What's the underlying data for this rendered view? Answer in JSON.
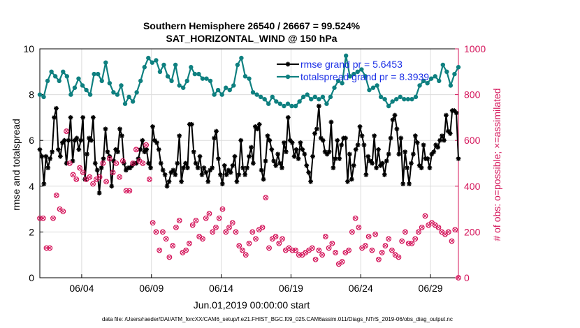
{
  "chart_data": {
    "type": "line",
    "title": "Southern Hemisphere 26540 / 26667 = 99.524%",
    "subtitle": "SAT_HORIZONTAL_WIND @ 150 hPa",
    "xlabel": "Jun.01,2019 00:00:00 start",
    "ylabel_left": "rmse and totalspread",
    "ylabel_right": "# of obs: o=possible; ×=assimilated",
    "footer": "data file: /Users/raeder/DAI/ATM_forcXX/CAM6_setup/f.e21.FHIST_BGC.f09_025.CAM6assim.011/Diags_NTrS_2019-06/obs_diag_output.nc",
    "x_tick_labels": [
      "06/04",
      "06/09",
      "06/14",
      "06/19",
      "06/24",
      "06/29"
    ],
    "x_tick_positions_day": [
      4,
      9,
      14,
      19,
      24,
      29
    ],
    "xlim_day": [
      1,
      31
    ],
    "ylim_left": [
      0,
      10
    ],
    "yticks_left": [
      "0",
      "2",
      "4",
      "6",
      "8",
      "10"
    ],
    "ylim_right": [
      0,
      1000
    ],
    "yticks_right": [
      "0",
      "200",
      "400",
      "600",
      "800",
      "1000"
    ],
    "grid": true,
    "legend_position": "top-right",
    "colors": {
      "rmse": "#000000",
      "spread": "#0f8080",
      "obs": "#d4145a",
      "legend_text": "#1a2ee6"
    },
    "series": [
      {
        "name": "rmse grand pr = 5.6453",
        "axis": "left",
        "marker": "asterisk",
        "values": [
          5.6,
          5.3,
          4.1,
          5.3,
          4.8,
          5.2,
          5.5,
          7.0,
          7.4,
          5.6,
          5.3,
          5.9,
          6.0,
          5.0,
          6.0,
          7.0,
          5.1,
          6.0,
          6.1,
          5.6,
          6.0,
          7.0,
          4.3,
          5.4,
          6.1,
          6.0,
          7.0,
          5.0,
          4.7,
          3.7,
          4.8,
          5.2,
          6.5,
          5.5,
          5.3,
          4.0,
          5.1,
          5.6,
          5.5,
          6.5,
          6.2,
          5.0,
          4.7,
          4.8,
          4.8,
          4.9,
          5.0,
          5.0,
          5.2,
          5.6,
          6.0,
          5.5,
          5.6,
          5.0,
          4.8,
          6.6,
          6.0,
          5.9,
          5.6,
          5.0,
          4.7,
          4.5,
          4.0,
          4.2,
          4.6,
          4.7,
          4.5,
          5.0,
          6.2,
          4.2,
          4.8,
          5.0,
          4.8,
          6.7,
          6.7,
          5.5,
          5.0,
          4.8,
          5.3,
          4.5,
          4.8,
          4.6,
          4.2,
          4.7,
          4.8,
          6.1,
          6.4,
          5.2,
          4.5,
          4.1,
          4.9,
          4.5,
          4.7,
          4.6,
          4.9,
          5.3,
          4.2,
          4.5,
          6.0,
          4.8,
          4.5,
          4.8,
          5.3,
          5.7,
          5.0,
          6.6,
          6.5,
          6.7,
          4.7,
          4.3,
          5.1,
          6.2,
          6.0,
          5.6,
          5.1,
          4.9,
          5.4,
          5.0,
          4.8,
          5.9,
          5.5,
          7.0,
          6.0,
          5.9,
          5.3,
          5.6,
          5.2,
          5.9,
          5.6,
          5.4,
          4.9,
          4.6,
          4.2,
          5.3,
          6.3,
          6.5,
          7.5,
          6.1,
          6.0,
          5.5,
          5.4,
          5.5,
          6.8,
          4.8,
          5.2,
          6.0,
          5.2,
          5.8,
          6.1,
          6.1,
          4.2,
          5.4,
          4.3,
          4.9,
          5.6,
          5.8,
          6.6,
          6.2,
          5.8,
          4.5,
          5.3,
          5.1,
          5.0,
          6.2,
          4.8,
          5.6,
          4.9,
          5.0,
          4.5,
          5.1,
          5.4,
          6.1,
          6.9,
          7.1,
          6.5,
          5.4,
          6.1,
          4.1,
          5.5,
          4.8,
          4.1,
          5.0,
          5.4,
          6.2,
          5.9,
          4.9,
          4.8,
          5.8,
          5.2,
          5.2,
          4.8,
          5.4,
          5.5,
          5.8,
          5.7,
          6.0,
          6.2,
          6.0,
          7.1,
          6.4,
          6.3,
          7.3,
          7.3,
          7.2,
          5.2
        ]
      },
      {
        "name": "totalspread grand pr = 8.3939",
        "axis": "left",
        "marker": "dot",
        "values": [
          8.0,
          7.9,
          8.6,
          9.0,
          8.8,
          8.6,
          9.0,
          8.8,
          8.0,
          8.3,
          8.7,
          8.4,
          8.2,
          8.0,
          8.9,
          8.9,
          8.6,
          9.4,
          8.5,
          8.1,
          8.0,
          8.4,
          7.6,
          7.9,
          7.7,
          8.1,
          8.6,
          9.2,
          9.6,
          9.4,
          9.5,
          9.0,
          9.3,
          8.8,
          8.6,
          9.3,
          8.4,
          8.3,
          8.6,
          9.2,
          8.9,
          8.9,
          8.7,
          8.7,
          8.6,
          8.0,
          8.2,
          8.0,
          8.3,
          8.2,
          8.4,
          9.3,
          9.6,
          8.8,
          8.7,
          8.1,
          8.0,
          7.9,
          7.8,
          7.6,
          7.9,
          7.7,
          7.6,
          7.5,
          7.6,
          7.5,
          7.5,
          7.7,
          7.9,
          8.0,
          7.8,
          7.9,
          7.8,
          7.9,
          7.6,
          7.9,
          8.3,
          8.6,
          8.5,
          9.7,
          8.8,
          8.9,
          9.0,
          9.1,
          8.8,
          8.2,
          8.3,
          8.4,
          7.9,
          7.8,
          7.5,
          7.7,
          7.8,
          7.9,
          7.8,
          7.8,
          7.8,
          7.9,
          8.4,
          8.6,
          8.5,
          8.7,
          8.8,
          8.6,
          9.3,
          9.0,
          8.4,
          8.9,
          9.2
        ]
      },
      {
        "name": "# of obs (possible / assimilated)",
        "axis": "right",
        "marker": "circle-x",
        "values": [
          260,
          260,
          130,
          130,
          260,
          360,
          300,
          290,
          640,
          500,
          450,
          430,
          480,
          460,
          430,
          440,
          410,
          430,
          440,
          500,
          420,
          520,
          460,
          500,
          440,
          510,
          380,
          380,
          500,
          560,
          510,
          500,
          580,
          430,
          240,
          200,
          120,
          200,
          170,
          90,
          140,
          220,
          250,
          110,
          120,
          150,
          230,
          250,
          180,
          170,
          260,
          280,
          200,
          220,
          260,
          300,
          200,
          220,
          240,
          200,
          140,
          120,
          100,
          150,
          200,
          170,
          210,
          220,
          350,
          130,
          170,
          180,
          150,
          170,
          120,
          130,
          120,
          120,
          100,
          100,
          110,
          120,
          130,
          80,
          120,
          100,
          180,
          130,
          150,
          110,
          60,
          70,
          110,
          120,
          200,
          260,
          220,
          130,
          140,
          180,
          120,
          190,
          80,
          110,
          140,
          170,
          120,
          100,
          90,
          160,
          200,
          150,
          150,
          170,
          200,
          220,
          270,
          230,
          240,
          230,
          220,
          200,
          190,
          200,
          160,
          210,
          0
        ]
      }
    ]
  }
}
